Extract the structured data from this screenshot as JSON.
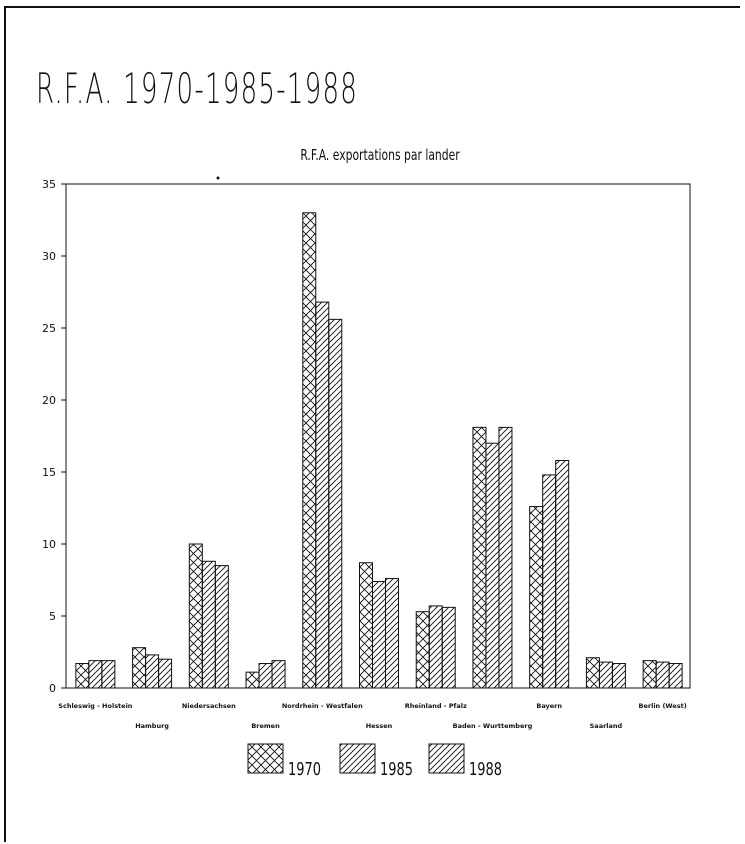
{
  "page": {
    "title": "R.F.A. 1970-1985-1988"
  },
  "chart_data": {
    "type": "bar",
    "title": "R.F.A. exportations par lander",
    "xlabel": "",
    "ylabel": "",
    "ylim": [
      0,
      35
    ],
    "yticks": [
      0,
      5,
      10,
      15,
      20,
      25,
      30,
      35
    ],
    "grid": false,
    "legend_position": "bottom",
    "categories": [
      "Schleswig - Holstein",
      "Hamburg",
      "Niedersachsen",
      "Bremen",
      "Nordrhein - Westfalen",
      "Hessen",
      "Rheinland - Pfalz",
      "Baden - Wurttemberg",
      "Bayern",
      "Saarland",
      "Berlin (West)"
    ],
    "series": [
      {
        "name": "1970",
        "pattern": "crosshatch",
        "values": [
          1.7,
          2.8,
          10.0,
          1.1,
          33.0,
          8.7,
          5.3,
          18.1,
          12.6,
          2.1,
          1.9
        ]
      },
      {
        "name": "1985",
        "pattern": "diagonal",
        "values": [
          1.9,
          2.3,
          8.8,
          1.7,
          26.8,
          7.4,
          5.7,
          17.0,
          14.8,
          1.8,
          1.8
        ]
      },
      {
        "name": "1988",
        "pattern": "diagonal",
        "values": [
          1.9,
          2.0,
          8.5,
          1.9,
          25.6,
          7.6,
          5.6,
          18.1,
          15.8,
          1.7,
          1.7
        ]
      }
    ]
  }
}
